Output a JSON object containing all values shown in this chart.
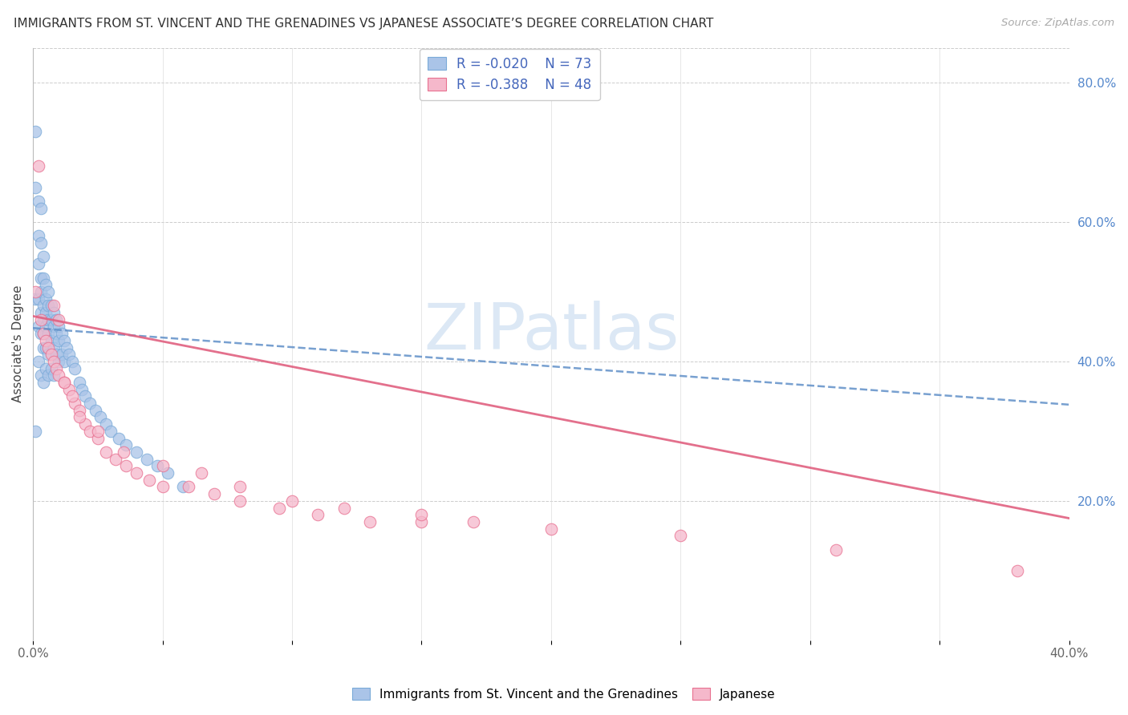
{
  "title": "IMMIGRANTS FROM ST. VINCENT AND THE GRENADINES VS JAPANESE ASSOCIATE’S DEGREE CORRELATION CHART",
  "source": "Source: ZipAtlas.com",
  "ylabel": "Associate's Degree",
  "legend_label1": "Immigrants from St. Vincent and the Grenadines",
  "legend_label2": "Japanese",
  "R1": -0.02,
  "N1": 73,
  "R2": -0.388,
  "N2": 48,
  "xlim": [
    0.0,
    0.4
  ],
  "ylim": [
    0.0,
    0.85
  ],
  "color_blue": "#aac4e8",
  "color_pink": "#f5b8cb",
  "color_blue_edge": "#7aaad8",
  "color_pink_edge": "#e87090",
  "color_blue_line": "#6090c8",
  "color_pink_line": "#e06080",
  "color_blue_text": "#4466bb",
  "watermark": "ZIPatlas",
  "watermark_color": "#dce8f5",
  "blue_trend_x": [
    0.0,
    0.4
  ],
  "blue_trend_y": [
    0.448,
    0.338
  ],
  "pink_trend_x": [
    0.0,
    0.4
  ],
  "pink_trend_y": [
    0.465,
    0.175
  ],
  "blue_x": [
    0.001,
    0.001,
    0.001,
    0.001,
    0.002,
    0.002,
    0.002,
    0.002,
    0.002,
    0.002,
    0.003,
    0.003,
    0.003,
    0.003,
    0.003,
    0.003,
    0.003,
    0.004,
    0.004,
    0.004,
    0.004,
    0.004,
    0.004,
    0.004,
    0.005,
    0.005,
    0.005,
    0.005,
    0.005,
    0.005,
    0.006,
    0.006,
    0.006,
    0.006,
    0.006,
    0.006,
    0.007,
    0.007,
    0.007,
    0.007,
    0.008,
    0.008,
    0.008,
    0.008,
    0.009,
    0.009,
    0.009,
    0.01,
    0.01,
    0.01,
    0.011,
    0.011,
    0.012,
    0.012,
    0.013,
    0.014,
    0.015,
    0.016,
    0.018,
    0.019,
    0.02,
    0.022,
    0.024,
    0.026,
    0.028,
    0.03,
    0.033,
    0.036,
    0.04,
    0.044,
    0.048,
    0.052,
    0.058
  ],
  "blue_y": [
    0.73,
    0.65,
    0.49,
    0.3,
    0.63,
    0.58,
    0.54,
    0.49,
    0.45,
    0.4,
    0.62,
    0.57,
    0.52,
    0.5,
    0.47,
    0.44,
    0.38,
    0.55,
    0.52,
    0.48,
    0.46,
    0.44,
    0.42,
    0.37,
    0.51,
    0.49,
    0.47,
    0.45,
    0.42,
    0.39,
    0.5,
    0.48,
    0.46,
    0.44,
    0.41,
    0.38,
    0.48,
    0.46,
    0.43,
    0.39,
    0.47,
    0.45,
    0.42,
    0.38,
    0.46,
    0.44,
    0.41,
    0.45,
    0.43,
    0.4,
    0.44,
    0.41,
    0.43,
    0.4,
    0.42,
    0.41,
    0.4,
    0.39,
    0.37,
    0.36,
    0.35,
    0.34,
    0.33,
    0.32,
    0.31,
    0.3,
    0.29,
    0.28,
    0.27,
    0.26,
    0.25,
    0.24,
    0.22
  ],
  "pink_x": [
    0.001,
    0.002,
    0.003,
    0.004,
    0.005,
    0.006,
    0.007,
    0.008,
    0.009,
    0.01,
    0.012,
    0.014,
    0.016,
    0.018,
    0.02,
    0.022,
    0.025,
    0.028,
    0.032,
    0.036,
    0.04,
    0.045,
    0.05,
    0.06,
    0.07,
    0.08,
    0.095,
    0.11,
    0.13,
    0.15,
    0.008,
    0.01,
    0.012,
    0.015,
    0.018,
    0.025,
    0.035,
    0.05,
    0.065,
    0.08,
    0.1,
    0.12,
    0.15,
    0.17,
    0.2,
    0.25,
    0.31,
    0.38
  ],
  "pink_y": [
    0.5,
    0.68,
    0.46,
    0.44,
    0.43,
    0.42,
    0.41,
    0.4,
    0.39,
    0.38,
    0.37,
    0.36,
    0.34,
    0.33,
    0.31,
    0.3,
    0.29,
    0.27,
    0.26,
    0.25,
    0.24,
    0.23,
    0.22,
    0.22,
    0.21,
    0.2,
    0.19,
    0.18,
    0.17,
    0.17,
    0.48,
    0.46,
    0.37,
    0.35,
    0.32,
    0.3,
    0.27,
    0.25,
    0.24,
    0.22,
    0.2,
    0.19,
    0.18,
    0.17,
    0.16,
    0.15,
    0.13,
    0.1
  ]
}
